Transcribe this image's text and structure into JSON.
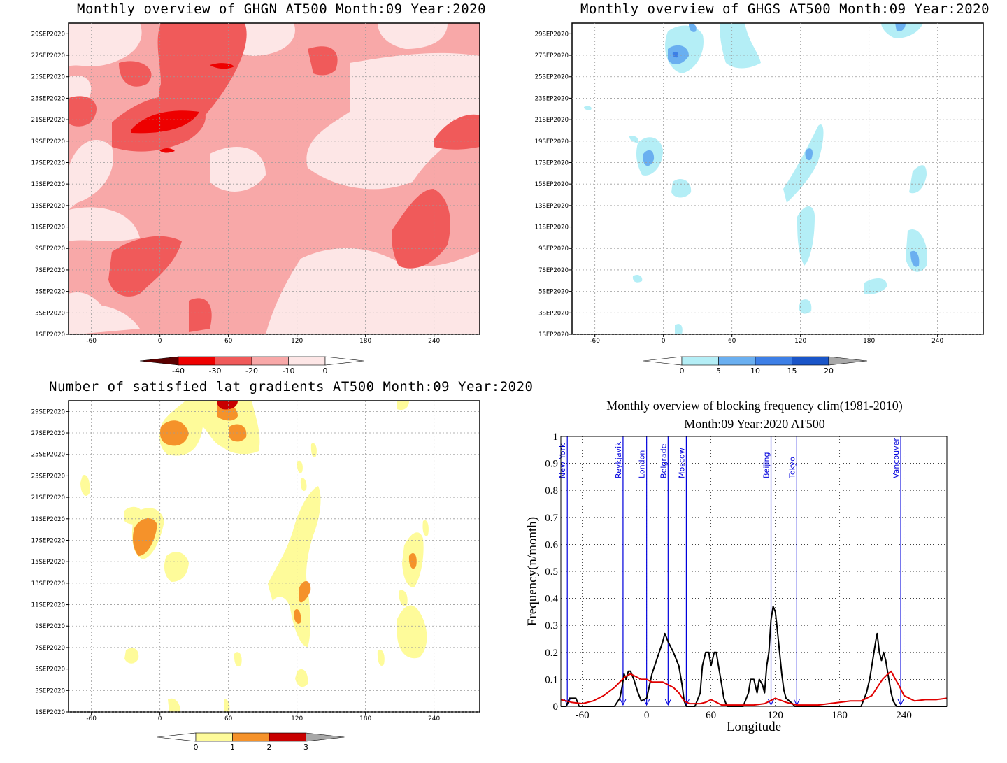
{
  "panels": {
    "ghgn": {
      "title": "Monthly overview of GHGN AT500 Month:09 Year:2020",
      "colorbar": {
        "ticks": [
          "-40",
          "-30",
          "-20",
          "-10",
          "0"
        ],
        "colors": [
          "#5a0000",
          "#ee0000",
          "#f05a5a",
          "#f8a8a8",
          "#fde6e6"
        ]
      }
    },
    "ghgs": {
      "title": "Monthly overview of GHGS AT500 Month:09 Year:2020",
      "colorbar": {
        "ticks": [
          "0",
          "5",
          "10",
          "15",
          "20"
        ],
        "colors": [
          "#b4eef6",
          "#6aaff0",
          "#3d7fe6",
          "#1a55c8"
        ]
      }
    },
    "gradients": {
      "title": "Number of satisfied lat gradients AT500 Month:09 Year:2020",
      "colorbar": {
        "ticks": [
          "0",
          "1",
          "2",
          "3"
        ],
        "colors": [
          "#fefb9a",
          "#f5922a",
          "#c80000"
        ]
      }
    },
    "blocking": {
      "title_line1": "Monthly overview of blocking frequency clim(1981-2010)",
      "title_line2": "Month:09 Year:2020  AT500"
    }
  },
  "date_axis": [
    "1SEP2020",
    "3SEP2020",
    "5SEP2020",
    "7SEP2020",
    "9SEP2020",
    "11SEP2020",
    "13SEP2020",
    "15SEP2020",
    "17SEP2020",
    "19SEP2020",
    "21SEP2020",
    "23SEP2020",
    "25SEP2020",
    "27SEP2020",
    "29SEP2020"
  ],
  "lon_axis": [
    "-60",
    "0",
    "60",
    "120",
    "180",
    "240"
  ],
  "chart_data": [
    {
      "type": "heatmap",
      "title": "Monthly overview of GHGN AT500 Month:09 Year:2020",
      "x_range": [
        -80,
        280
      ],
      "y_range": [
        "1SEP2020",
        "30SEP2020"
      ],
      "levels": [
        -40,
        -30,
        -20,
        -10,
        0
      ]
    },
    {
      "type": "heatmap",
      "title": "Monthly overview of GHGS AT500 Month:09 Year:2020",
      "x_range": [
        -80,
        280
      ],
      "y_range": [
        "1SEP2020",
        "30SEP2020"
      ],
      "levels": [
        0,
        5,
        10,
        15,
        20
      ]
    },
    {
      "type": "heatmap",
      "title": "Number of satisfied lat gradients AT500 Month:09 Year:2020",
      "x_range": [
        -80,
        280
      ],
      "y_range": [
        "1SEP2020",
        "30SEP2020"
      ],
      "levels": [
        0,
        1,
        2,
        3
      ]
    },
    {
      "type": "line",
      "title": "Monthly overview of blocking frequency clim(1981-2010) Month:09 Year:2020  AT500",
      "xlabel": "Longitude",
      "ylabel": "Frequency(n/month)",
      "xlim": [
        -80,
        280
      ],
      "ylim": [
        0,
        1
      ],
      "xticks": [
        "-60",
        "0",
        "60",
        "120",
        "180",
        "240"
      ],
      "yticks": [
        "0",
        "0.1",
        "0.2",
        "0.3",
        "0.4",
        "0.5",
        "0.6",
        "0.7",
        "0.8",
        "0.9",
        "1"
      ],
      "grid": true,
      "cities": [
        {
          "name": "New York",
          "lon": -74
        },
        {
          "name": "Reykjavik",
          "lon": -22
        },
        {
          "name": "London",
          "lon": 0
        },
        {
          "name": "Belgrade",
          "lon": 20
        },
        {
          "name": "Moscow",
          "lon": 37
        },
        {
          "name": "Beijing",
          "lon": 116
        },
        {
          "name": "Tokyo",
          "lon": 140
        },
        {
          "name": "Vancouver",
          "lon": 237
        }
      ],
      "series": [
        {
          "color": "#000000",
          "x": [
            -80,
            -75,
            -72,
            -70,
            -66,
            -63,
            -60,
            -55,
            -50,
            -40,
            -30,
            -25,
            -23,
            -21,
            -19,
            -17,
            -15,
            -12,
            -8,
            -5,
            0,
            5,
            10,
            15,
            17,
            20,
            25,
            30,
            33,
            35,
            37,
            40,
            45,
            50,
            52,
            55,
            58,
            60,
            63,
            65,
            67,
            70,
            72,
            75,
            80,
            90,
            95,
            97,
            100,
            103,
            105,
            108,
            110,
            112,
            114,
            116,
            118,
            120,
            122,
            124,
            126,
            128,
            130,
            133,
            136,
            138,
            140,
            150,
            170,
            190,
            200,
            205,
            208,
            210,
            212,
            214,
            215,
            217,
            219,
            221,
            223,
            225,
            228,
            230,
            233,
            235,
            240,
            280
          ],
          "y": [
            0,
            0,
            0.03,
            0.03,
            0.03,
            0,
            0,
            0,
            0,
            0,
            0,
            0.03,
            0.07,
            0.12,
            0.1,
            0.13,
            0.13,
            0.1,
            0.05,
            0.02,
            0.03,
            0.12,
            0.18,
            0.24,
            0.27,
            0.24,
            0.2,
            0.15,
            0.08,
            0.02,
            0,
            0,
            0,
            0.05,
            0.15,
            0.2,
            0.2,
            0.15,
            0.2,
            0.2,
            0.15,
            0.08,
            0.03,
            0,
            0,
            0,
            0.05,
            0.1,
            0.1,
            0.05,
            0.1,
            0.08,
            0.05,
            0.15,
            0.2,
            0.32,
            0.37,
            0.35,
            0.28,
            0.2,
            0.12,
            0.06,
            0.03,
            0.02,
            0.01,
            0,
            0,
            0,
            0,
            0,
            0,
            0.05,
            0.1,
            0.15,
            0.2,
            0.25,
            0.27,
            0.2,
            0.17,
            0.2,
            0.17,
            0.12,
            0.05,
            0.02,
            0,
            0,
            0,
            0
          ]
        },
        {
          "color": "#e00000",
          "x": [
            -80,
            -70,
            -60,
            -50,
            -40,
            -30,
            -20,
            -15,
            -10,
            -5,
            0,
            5,
            10,
            15,
            20,
            25,
            30,
            35,
            40,
            45,
            50,
            55,
            60,
            65,
            70,
            80,
            90,
            100,
            110,
            115,
            120,
            130,
            140,
            150,
            160,
            170,
            180,
            190,
            200,
            210,
            215,
            220,
            225,
            228,
            232,
            235,
            240,
            250,
            260,
            270,
            280
          ],
          "y": [
            0.025,
            0.015,
            0.01,
            0.02,
            0.04,
            0.07,
            0.11,
            0.12,
            0.11,
            0.1,
            0.1,
            0.09,
            0.09,
            0.09,
            0.08,
            0.07,
            0.05,
            0.02,
            0.01,
            0.01,
            0.01,
            0.015,
            0.025,
            0.015,
            0.005,
            0.005,
            0.005,
            0.005,
            0.01,
            0.02,
            0.03,
            0.015,
            0.005,
            0.005,
            0.005,
            0.01,
            0.015,
            0.02,
            0.02,
            0.04,
            0.07,
            0.1,
            0.12,
            0.13,
            0.1,
            0.08,
            0.04,
            0.02,
            0.025,
            0.025,
            0.03
          ]
        }
      ]
    }
  ]
}
